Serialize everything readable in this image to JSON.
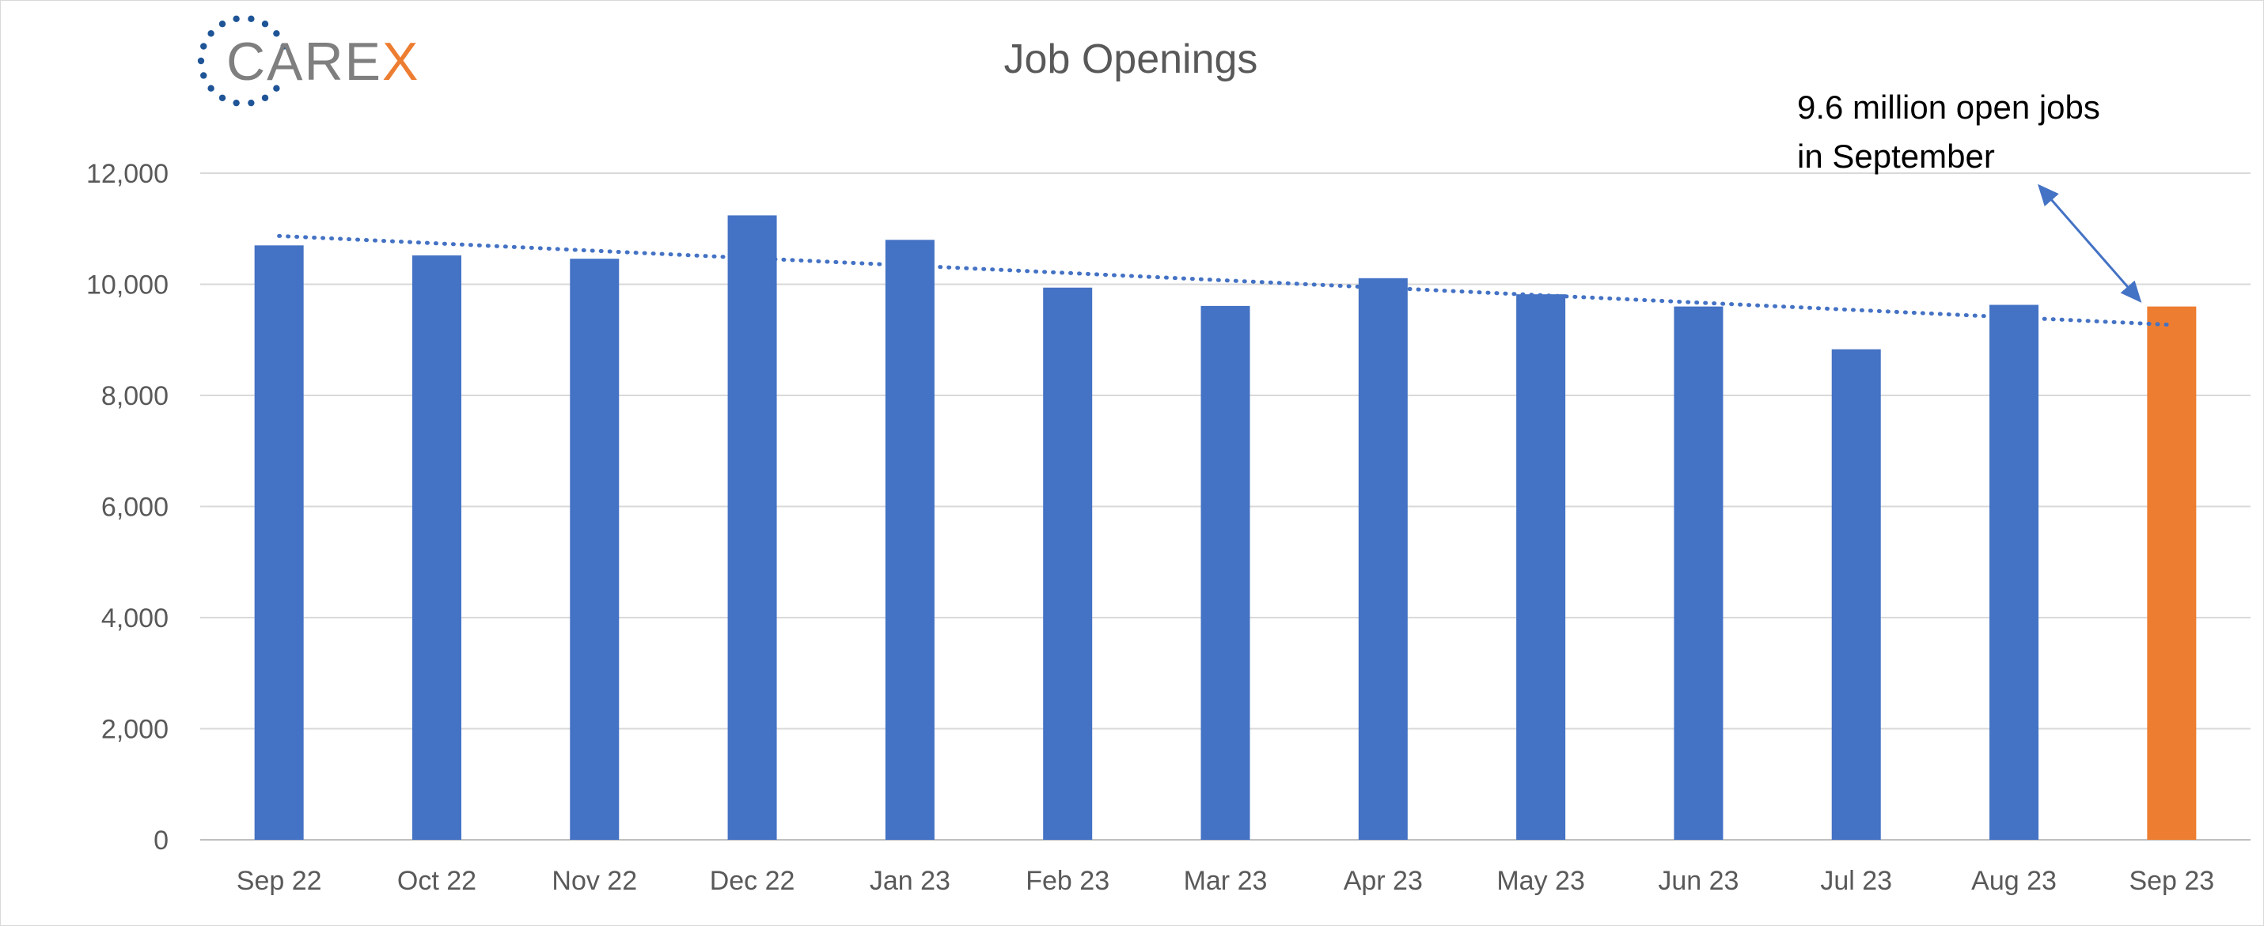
{
  "logo": {
    "text_main": "CARE",
    "text_accent": "X",
    "main_color": "#7f7f7f",
    "accent_color": "#ed7d31",
    "dots_color": "#1f5597"
  },
  "chart_data": {
    "type": "bar",
    "title": "Job Openings",
    "xlabel": "",
    "ylabel": "",
    "ylim": [
      0,
      12000
    ],
    "yticks": [
      0,
      2000,
      4000,
      6000,
      8000,
      10000,
      12000
    ],
    "ytick_labels": [
      "0",
      "2,000",
      "4,000",
      "6,000",
      "8,000",
      "10,000",
      "12,000"
    ],
    "grid": true,
    "categories": [
      "Sep 22",
      "Oct 22",
      "Nov 22",
      "Dec 22",
      "Jan 23",
      "Feb 23",
      "Mar 23",
      "Apr 23",
      "May 23",
      "Jun 23",
      "Jul 23",
      "Aug 23",
      "Sep 23"
    ],
    "values": [
      10700,
      10520,
      10460,
      11240,
      10800,
      9940,
      9610,
      10110,
      9820,
      9600,
      8830,
      9630,
      9600
    ],
    "bar_colors": [
      "#4472c4",
      "#4472c4",
      "#4472c4",
      "#4472c4",
      "#4472c4",
      "#4472c4",
      "#4472c4",
      "#4472c4",
      "#4472c4",
      "#4472c4",
      "#4472c4",
      "#4472c4",
      "#ed7d31"
    ],
    "trendline": {
      "type": "linear",
      "color": "#4472c4",
      "style": "dotted",
      "start": 10870,
      "end": 9270
    },
    "annotation": {
      "lines": [
        "9.6 million open jobs",
        "in September"
      ],
      "target_category": "Sep 23"
    }
  }
}
